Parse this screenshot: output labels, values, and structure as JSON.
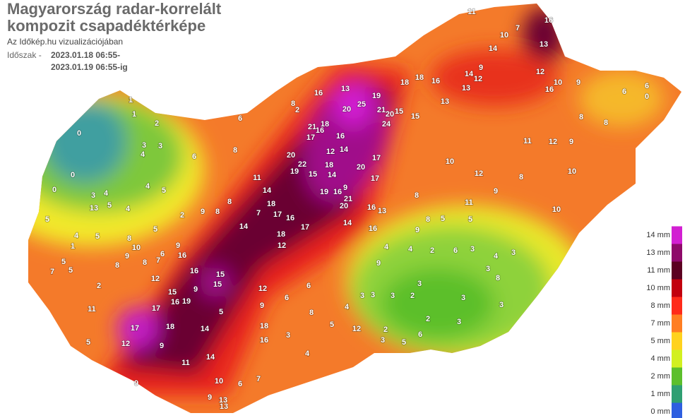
{
  "header": {
    "title_lines": [
      "Magyarország radar-korrelált",
      "kompozit csapadéktérképe"
    ],
    "subtitle": "Az Időkép.hu vizualizációjában",
    "period_label": "Időszak -",
    "period_start": "2023.01.18 06:55-",
    "period_end": "2023.01.19 06:55-ig"
  },
  "legend": [
    {
      "label": "14 mm",
      "color": "#d21fd2"
    },
    {
      "label": "13 mm",
      "color": "#8e0a6a"
    },
    {
      "label": "11 mm",
      "color": "#5c0022"
    },
    {
      "label": "10 mm",
      "color": "#c2000e"
    },
    {
      "label": "8 mm",
      "color": "#ff2a1a"
    },
    {
      "label": "7 mm",
      "color": "#ff7e22"
    },
    {
      "label": "5 mm",
      "color": "#ffd21e"
    },
    {
      "label": "4 mm",
      "color": "#d2f020"
    },
    {
      "label": "2 mm",
      "color": "#5cbf2c"
    },
    {
      "label": "1 mm",
      "color": "#2f9f72"
    },
    {
      "label": "0 mm",
      "color": "#2f5fe0"
    }
  ],
  "stations": [
    1,
    1,
    2,
    0,
    3,
    3,
    4,
    6,
    8,
    0,
    0,
    3,
    4,
    13,
    5,
    4,
    5,
    4,
    2,
    9,
    8,
    8,
    11,
    14,
    18,
    7,
    17,
    16,
    17,
    18,
    14,
    12,
    6,
    16,
    13,
    20,
    25,
    19,
    21,
    24,
    20,
    15,
    15,
    2,
    8,
    21,
    16,
    17,
    18,
    16,
    14,
    12,
    18,
    20,
    17,
    17,
    14,
    19,
    16,
    9,
    20,
    21,
    16,
    13,
    16,
    14,
    20,
    19,
    22,
    15,
    18,
    18,
    16,
    13,
    12,
    14,
    14,
    9,
    10,
    7,
    11,
    16,
    13,
    12,
    16,
    10,
    9,
    6,
    6,
    0,
    8,
    8,
    12,
    9,
    11,
    12,
    10,
    8,
    9,
    11,
    10,
    13,
    10,
    8,
    8,
    5,
    5,
    6,
    2,
    4,
    9,
    4,
    9,
    3,
    3,
    2,
    4,
    8,
    3,
    3,
    3,
    3,
    3,
    3,
    2,
    3,
    2,
    3,
    5,
    6,
    4,
    3,
    12,
    5,
    8,
    6,
    6,
    3,
    4,
    12,
    9,
    18,
    16,
    15,
    15,
    16,
    16,
    9,
    12,
    15,
    9,
    16,
    19,
    17,
    17,
    18,
    9,
    12,
    14,
    11,
    14,
    10,
    9,
    13,
    13,
    9,
    5,
    6,
    7,
    7,
    5,
    5,
    1,
    8,
    9,
    10,
    8,
    7,
    6,
    11,
    2,
    5,
    5,
    4,
    5,
    8,
    5
  ]
}
